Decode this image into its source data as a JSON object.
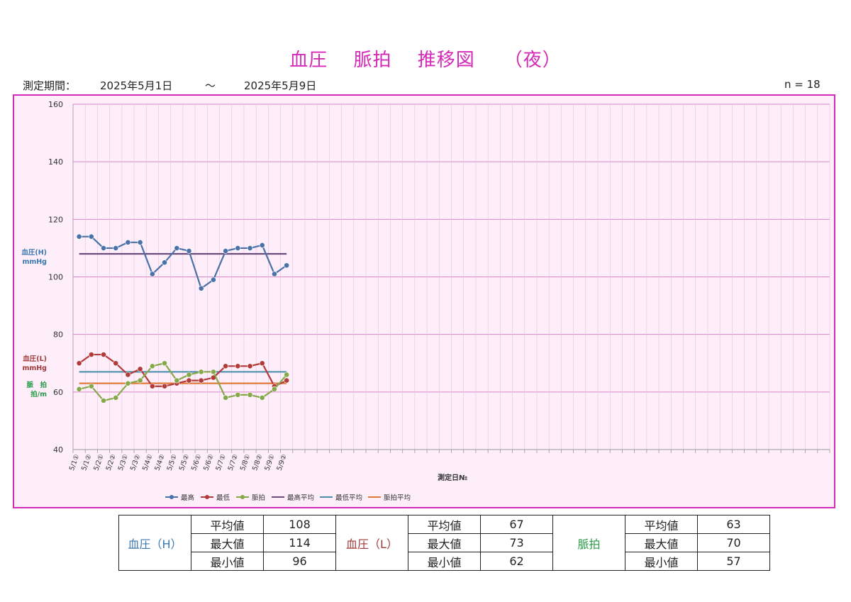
{
  "title": "血圧　 脈拍　 推移図　　（夜）",
  "period": {
    "label": "測定期間：",
    "start": "2025年5月1日",
    "sep": "～",
    "end": "2025年5月9日"
  },
  "n_label": "n = 18",
  "colors": {
    "accent": "#d42ab8",
    "high": "#4a72a8",
    "low": "#b23a3a",
    "pulse": "#86a84a",
    "high_avg": "#6b4c7c",
    "low_avg": "#4e8fae",
    "pulse_avg": "#e07a3a"
  },
  "chart_data": {
    "type": "line",
    "title": "",
    "xlabel": "測定日№",
    "ylabels": [
      {
        "lines": [
          "血圧(H)",
          "mmHg"
        ],
        "color": "#3a78b0"
      },
      {
        "lines": [
          "血圧(L)",
          "mmHg"
        ],
        "color": "#a03a3a"
      },
      {
        "lines": [
          "脈　拍",
          "拍/m"
        ],
        "color": "#2a9a4a"
      }
    ],
    "ylim": [
      40,
      160
    ],
    "yticks": [
      40,
      60,
      80,
      100,
      120,
      140,
      160
    ],
    "grid": true,
    "legend_position": "bottom",
    "categories": [
      "5/1①",
      "5/1②",
      "5/2①",
      "5/2②",
      "5/3①",
      "5/3②",
      "5/4①",
      "5/4②",
      "5/5①",
      "5/5②",
      "5/6①",
      "5/6②",
      "5/7①",
      "5/7②",
      "5/8①",
      "5/8②",
      "5/9①",
      "5/9②"
    ],
    "total_slots": 62,
    "series": [
      {
        "name": "最高",
        "color": "#4a72a8",
        "marker": true,
        "values": [
          114,
          114,
          110,
          110,
          112,
          112,
          101,
          105,
          110,
          109,
          96,
          99,
          109,
          110,
          110,
          111,
          101,
          104
        ]
      },
      {
        "name": "最低",
        "color": "#b23a3a",
        "marker": true,
        "values": [
          70,
          73,
          73,
          70,
          66,
          68,
          62,
          62,
          63,
          64,
          64,
          65,
          69,
          69,
          69,
          70,
          62,
          64
        ]
      },
      {
        "name": "脈拍",
        "color": "#86a84a",
        "marker": true,
        "values": [
          61,
          62,
          57,
          58,
          63,
          64,
          69,
          70,
          64,
          66,
          67,
          67,
          58,
          59,
          59,
          58,
          61,
          66
        ]
      },
      {
        "name": "最高平均",
        "color": "#6b4c7c",
        "marker": false,
        "constant": 108
      },
      {
        "name": "最低平均",
        "color": "#4e8fae",
        "marker": false,
        "constant": 67
      },
      {
        "name": "脈拍平均",
        "color": "#e07a3a",
        "marker": false,
        "constant": 63
      }
    ]
  },
  "stats": {
    "groups": [
      {
        "name": "血圧（H）",
        "color": "#3a78b0",
        "rows": [
          {
            "label": "平均値",
            "value": "108"
          },
          {
            "label": "最大値",
            "value": "114"
          },
          {
            "label": "最小値",
            "value": "96"
          }
        ]
      },
      {
        "name": "血圧（L）",
        "color": "#a03a3a",
        "rows": [
          {
            "label": "平均値",
            "value": "67"
          },
          {
            "label": "最大値",
            "value": "73"
          },
          {
            "label": "最小値",
            "value": "62"
          }
        ]
      },
      {
        "name": "脈拍",
        "color": "#2a9a4a",
        "rows": [
          {
            "label": "平均値",
            "value": "63"
          },
          {
            "label": "最大値",
            "value": "70"
          },
          {
            "label": "最小値",
            "value": "57"
          }
        ]
      }
    ]
  }
}
